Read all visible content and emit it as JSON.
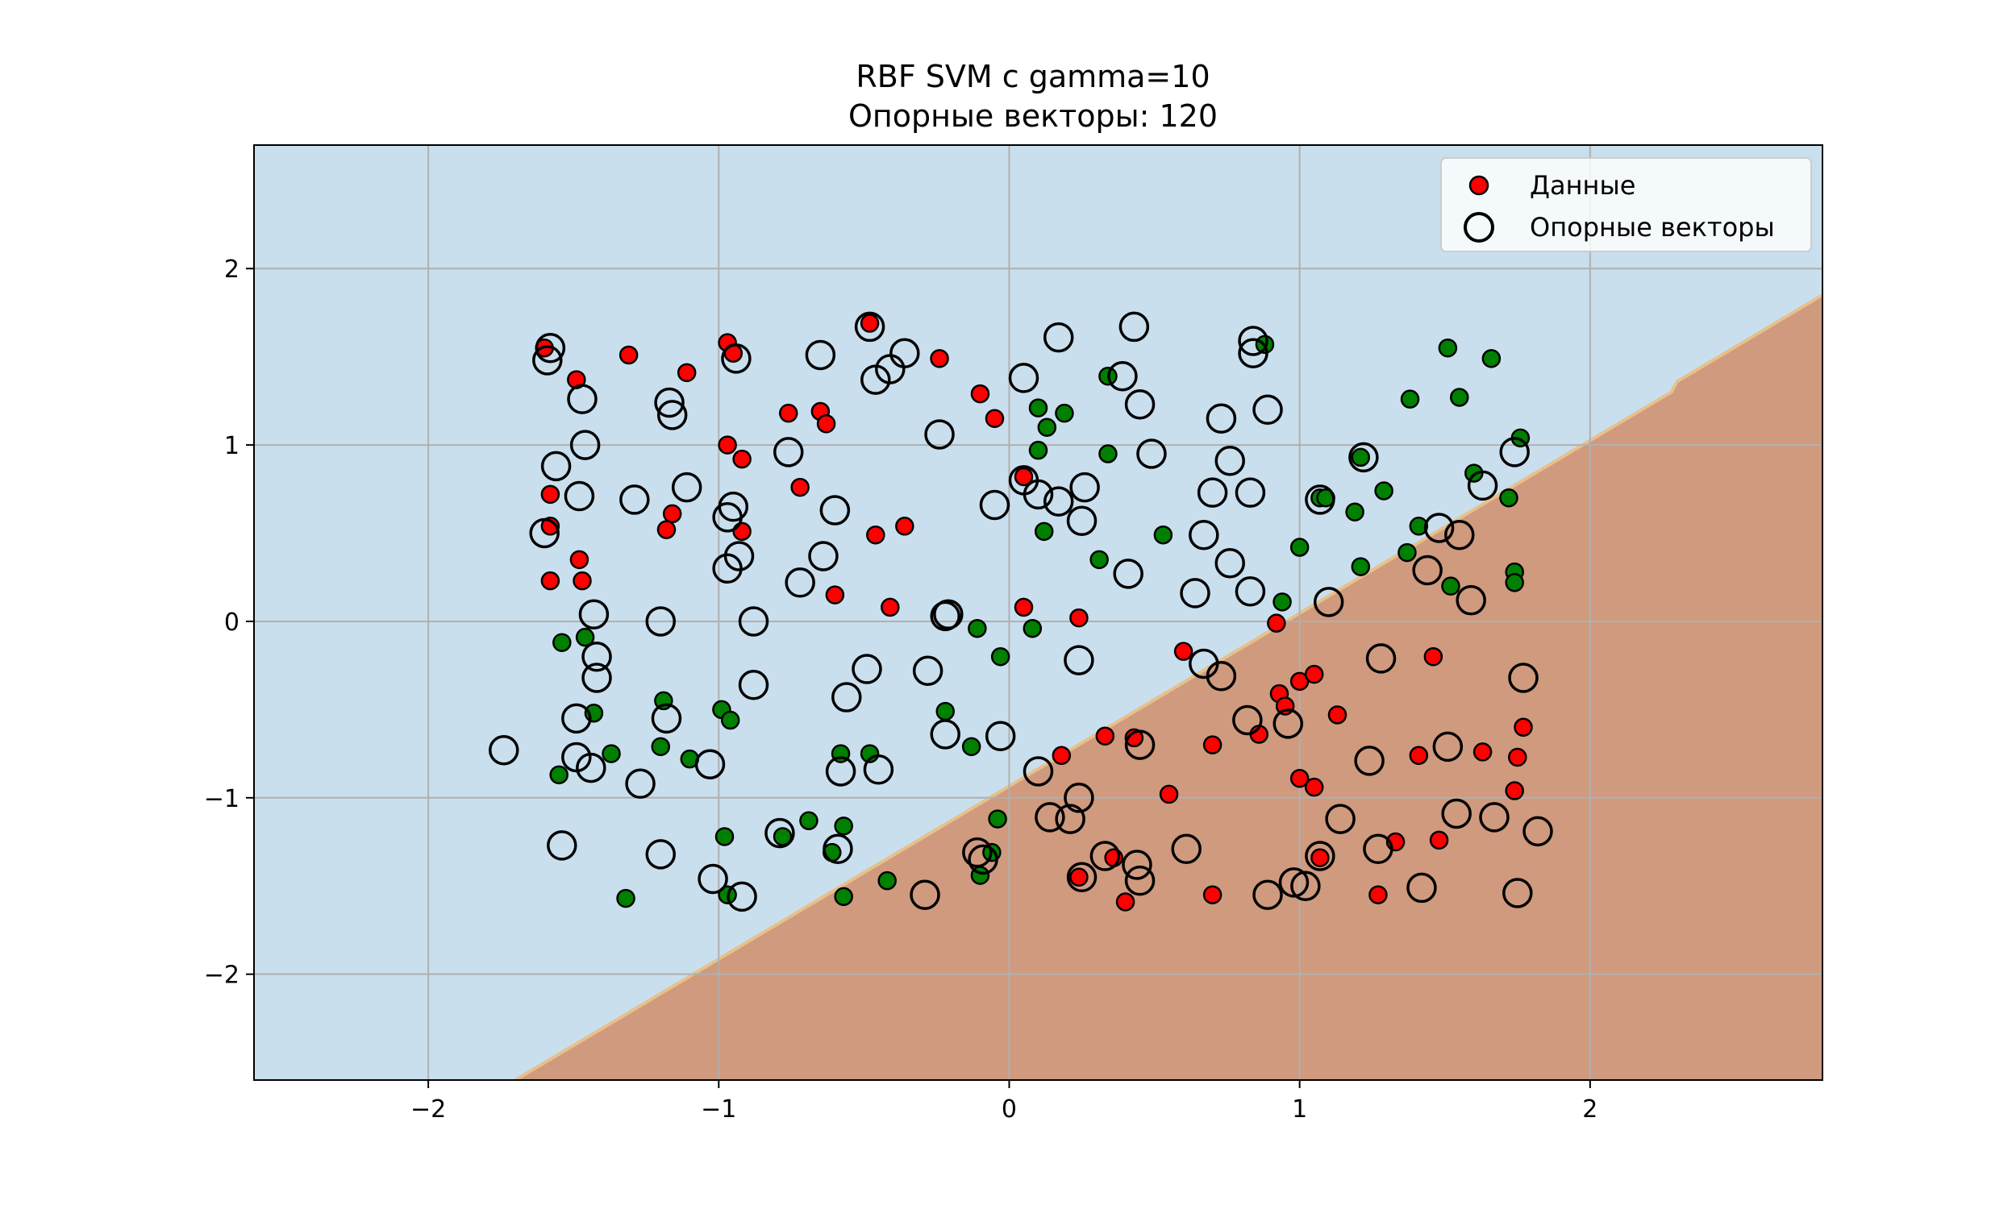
{
  "chart_data": {
    "type": "scatter",
    "title": "RBF SVM с gamma=10",
    "subtitle": "Опорные векторы: 120",
    "xlabel": "",
    "ylabel": "",
    "xlim": [
      -2.6,
      2.8
    ],
    "ylim": [
      -2.6,
      2.7
    ],
    "x_ticks": [
      -2,
      -1,
      0,
      1,
      2
    ],
    "y_ticks": [
      -2,
      -1,
      0,
      1,
      2
    ],
    "x_tick_labels": [
      "−2",
      "−1",
      "0",
      "1",
      "2"
    ],
    "y_tick_labels": [
      "−2",
      "−1",
      "0",
      "1",
      "2"
    ],
    "grid": true,
    "legend": {
      "placement": "top-right",
      "entries": [
        {
          "label": "Данные",
          "marker": "filled-circle",
          "color": "#ff0000"
        },
        {
          "label": "Опорные векторы",
          "marker": "hollow-circle",
          "color": "#000000"
        }
      ]
    },
    "decision_regions": {
      "boundary_line": [
        [
          -1.7,
          -2.6
        ],
        [
          2.28,
          1.3
        ],
        [
          2.3,
          1.36
        ],
        [
          2.8,
          1.85
        ]
      ],
      "upper_region_color": "#c9dfed",
      "lower_region_color": "#cf9a7e",
      "boundary_color": "#e8c08a"
    },
    "series": [
      {
        "name": "Данные",
        "colors": {
          "red": "#ff0000",
          "green": "#008000"
        },
        "points": [
          [
            -1.6,
            1.55,
            "red"
          ],
          [
            -1.31,
            1.51,
            "red"
          ],
          [
            -1.49,
            1.37,
            "red"
          ],
          [
            -1.11,
            1.41,
            "red"
          ],
          [
            -0.97,
            1.58,
            "red"
          ],
          [
            -0.95,
            1.52,
            "red"
          ],
          [
            -0.48,
            1.69,
            "red"
          ],
          [
            -0.24,
            1.49,
            "red"
          ],
          [
            -0.76,
            1.18,
            "red"
          ],
          [
            -0.65,
            1.19,
            "red"
          ],
          [
            -0.63,
            1.12,
            "red"
          ],
          [
            -0.1,
            1.29,
            "red"
          ],
          [
            -0.05,
            1.15,
            "red"
          ],
          [
            -0.97,
            1.0,
            "red"
          ],
          [
            -0.92,
            0.92,
            "red"
          ],
          [
            -0.72,
            0.76,
            "red"
          ],
          [
            -1.58,
            0.72,
            "red"
          ],
          [
            -1.58,
            0.54,
            "red"
          ],
          [
            -1.16,
            0.61,
            "red"
          ],
          [
            -1.18,
            0.52,
            "red"
          ],
          [
            -0.92,
            0.51,
            "red"
          ],
          [
            -0.46,
            0.49,
            "red"
          ],
          [
            -0.36,
            0.54,
            "red"
          ],
          [
            0.05,
            0.82,
            "red"
          ],
          [
            -1.48,
            0.35,
            "red"
          ],
          [
            -1.47,
            0.23,
            "red"
          ],
          [
            -1.58,
            0.23,
            "red"
          ],
          [
            -0.6,
            0.15,
            "red"
          ],
          [
            -0.41,
            0.08,
            "red"
          ],
          [
            0.05,
            0.08,
            "red"
          ],
          [
            0.24,
            0.02,
            "red"
          ],
          [
            0.6,
            -0.17,
            "red"
          ],
          [
            0.92,
            -0.01,
            "red"
          ],
          [
            1.46,
            -0.2,
            "red"
          ],
          [
            0.93,
            -0.41,
            "red"
          ],
          [
            0.95,
            -0.48,
            "red"
          ],
          [
            1.0,
            -0.34,
            "red"
          ],
          [
            1.05,
            -0.3,
            "red"
          ],
          [
            1.13,
            -0.53,
            "red"
          ],
          [
            1.77,
            -0.6,
            "red"
          ],
          [
            0.86,
            -0.64,
            "red"
          ],
          [
            0.7,
            -0.7,
            "red"
          ],
          [
            0.43,
            -0.66,
            "red"
          ],
          [
            0.33,
            -0.65,
            "red"
          ],
          [
            0.18,
            -0.76,
            "red"
          ],
          [
            1.41,
            -0.76,
            "red"
          ],
          [
            1.63,
            -0.74,
            "red"
          ],
          [
            1.75,
            -0.77,
            "red"
          ],
          [
            1.0,
            -0.89,
            "red"
          ],
          [
            1.05,
            -0.94,
            "red"
          ],
          [
            0.55,
            -0.98,
            "red"
          ],
          [
            1.74,
            -0.96,
            "red"
          ],
          [
            0.36,
            -1.34,
            "red"
          ],
          [
            0.24,
            -1.45,
            "red"
          ],
          [
            1.07,
            -1.34,
            "red"
          ],
          [
            1.33,
            -1.25,
            "red"
          ],
          [
            1.48,
            -1.24,
            "red"
          ],
          [
            0.4,
            -1.59,
            "red"
          ],
          [
            0.7,
            -1.55,
            "red"
          ],
          [
            1.27,
            -1.55,
            "red"
          ],
          [
            0.88,
            1.57,
            "green"
          ],
          [
            1.51,
            1.55,
            "green"
          ],
          [
            1.66,
            1.49,
            "green"
          ],
          [
            1.38,
            1.26,
            "green"
          ],
          [
            1.55,
            1.27,
            "green"
          ],
          [
            0.34,
            1.39,
            "green"
          ],
          [
            0.1,
            1.21,
            "green"
          ],
          [
            0.19,
            1.18,
            "green"
          ],
          [
            0.13,
            1.1,
            "green"
          ],
          [
            0.1,
            0.97,
            "green"
          ],
          [
            0.34,
            0.95,
            "green"
          ],
          [
            1.21,
            0.93,
            "green"
          ],
          [
            1.76,
            1.04,
            "green"
          ],
          [
            1.6,
            0.84,
            "green"
          ],
          [
            1.29,
            0.74,
            "green"
          ],
          [
            1.07,
            0.7,
            "green"
          ],
          [
            1.09,
            0.7,
            "green"
          ],
          [
            1.72,
            0.7,
            "green"
          ],
          [
            1.19,
            0.62,
            "green"
          ],
          [
            1.41,
            0.54,
            "green"
          ],
          [
            0.53,
            0.49,
            "green"
          ],
          [
            0.12,
            0.51,
            "green"
          ],
          [
            1.0,
            0.42,
            "green"
          ],
          [
            1.37,
            0.39,
            "green"
          ],
          [
            0.31,
            0.35,
            "green"
          ],
          [
            1.21,
            0.31,
            "green"
          ],
          [
            1.74,
            0.28,
            "green"
          ],
          [
            1.74,
            0.22,
            "green"
          ],
          [
            1.52,
            0.2,
            "green"
          ],
          [
            0.94,
            0.11,
            "green"
          ],
          [
            -0.11,
            -0.04,
            "green"
          ],
          [
            0.08,
            -0.04,
            "green"
          ],
          [
            -1.54,
            -0.12,
            "green"
          ],
          [
            -1.46,
            -0.09,
            "green"
          ],
          [
            -0.03,
            -0.2,
            "green"
          ],
          [
            -0.22,
            -0.51,
            "green"
          ],
          [
            -1.19,
            -0.45,
            "green"
          ],
          [
            -0.99,
            -0.5,
            "green"
          ],
          [
            -0.96,
            -0.56,
            "green"
          ],
          [
            -1.43,
            -0.52,
            "green"
          ],
          [
            -0.13,
            -0.71,
            "green"
          ],
          [
            -1.2,
            -0.71,
            "green"
          ],
          [
            -1.37,
            -0.75,
            "green"
          ],
          [
            -0.58,
            -0.75,
            "green"
          ],
          [
            -0.48,
            -0.75,
            "green"
          ],
          [
            -1.1,
            -0.78,
            "green"
          ],
          [
            -1.55,
            -0.87,
            "green"
          ],
          [
            -0.04,
            -1.12,
            "green"
          ],
          [
            -0.69,
            -1.13,
            "green"
          ],
          [
            -0.57,
            -1.16,
            "green"
          ],
          [
            -0.78,
            -1.22,
            "green"
          ],
          [
            -0.98,
            -1.22,
            "green"
          ],
          [
            -0.61,
            -1.31,
            "green"
          ],
          [
            -0.06,
            -1.31,
            "green"
          ],
          [
            -0.1,
            -1.44,
            "green"
          ],
          [
            -0.42,
            -1.47,
            "green"
          ],
          [
            -0.97,
            -1.55,
            "green"
          ],
          [
            -0.57,
            -1.56,
            "green"
          ],
          [
            -1.32,
            -1.57,
            "green"
          ]
        ]
      },
      {
        "name": "Опорные векторы",
        "points": [
          [
            -1.58,
            1.55
          ],
          [
            -1.59,
            1.48
          ],
          [
            -1.47,
            1.26
          ],
          [
            -1.17,
            1.24
          ],
          [
            -1.16,
            1.17
          ],
          [
            -0.94,
            1.49
          ],
          [
            -0.65,
            1.51
          ],
          [
            -0.48,
            1.67
          ],
          [
            -0.36,
            1.52
          ],
          [
            -0.41,
            1.43
          ],
          [
            -0.46,
            1.37
          ],
          [
            -0.24,
            1.06
          ],
          [
            0.17,
            1.61
          ],
          [
            0.05,
            1.38
          ],
          [
            0.39,
            1.39
          ],
          [
            0.43,
            1.67
          ],
          [
            0.45,
            1.23
          ],
          [
            0.84,
            1.59
          ],
          [
            0.84,
            1.52
          ],
          [
            0.89,
            1.2
          ],
          [
            0.73,
            1.15
          ],
          [
            -1.56,
            0.88
          ],
          [
            -1.46,
            1.0
          ],
          [
            -1.48,
            0.71
          ],
          [
            -1.29,
            0.69
          ],
          [
            -1.11,
            0.76
          ],
          [
            -0.76,
            0.96
          ],
          [
            -0.95,
            0.65
          ],
          [
            -0.97,
            0.59
          ],
          [
            -0.6,
            0.63
          ],
          [
            0.05,
            0.8
          ],
          [
            0.1,
            0.72
          ],
          [
            0.17,
            0.68
          ],
          [
            0.26,
            0.76
          ],
          [
            -0.05,
            0.66
          ],
          [
            0.25,
            0.57
          ],
          [
            0.49,
            0.95
          ],
          [
            0.76,
            0.91
          ],
          [
            0.7,
            0.73
          ],
          [
            0.83,
            0.73
          ],
          [
            1.07,
            0.69
          ],
          [
            1.22,
            0.93
          ],
          [
            1.74,
            0.96
          ],
          [
            1.63,
            0.77
          ],
          [
            1.48,
            0.53
          ],
          [
            1.55,
            0.49
          ],
          [
            1.44,
            0.29
          ],
          [
            1.59,
            0.12
          ],
          [
            0.67,
            0.49
          ],
          [
            0.76,
            0.33
          ],
          [
            0.83,
            0.17
          ],
          [
            0.64,
            0.16
          ],
          [
            0.41,
            0.27
          ],
          [
            -1.6,
            0.5
          ],
          [
            -0.64,
            0.37
          ],
          [
            -0.93,
            0.37
          ],
          [
            -0.97,
            0.3
          ],
          [
            -0.72,
            0.22
          ],
          [
            -1.43,
            0.04
          ],
          [
            -1.2,
            0.0
          ],
          [
            -0.88,
            0.0
          ],
          [
            -0.21,
            0.04
          ],
          [
            -0.22,
            0.03
          ],
          [
            1.1,
            0.11
          ],
          [
            -1.42,
            -0.2
          ],
          [
            -1.42,
            -0.32
          ],
          [
            -0.88,
            -0.36
          ],
          [
            -0.49,
            -0.27
          ],
          [
            -0.28,
            -0.28
          ],
          [
            0.24,
            -0.22
          ],
          [
            0.67,
            -0.24
          ],
          [
            0.73,
            -0.31
          ],
          [
            1.28,
            -0.21
          ],
          [
            1.77,
            -0.32
          ],
          [
            0.82,
            -0.56
          ],
          [
            0.96,
            -0.58
          ],
          [
            -1.49,
            -0.55
          ],
          [
            -1.18,
            -0.55
          ],
          [
            -0.56,
            -0.43
          ],
          [
            -0.22,
            -0.64
          ],
          [
            -0.03,
            -0.65
          ],
          [
            -1.49,
            -0.77
          ],
          [
            -1.44,
            -0.83
          ],
          [
            -1.27,
            -0.92
          ],
          [
            -1.03,
            -0.81
          ],
          [
            -0.58,
            -0.85
          ],
          [
            -0.45,
            -0.84
          ],
          [
            0.1,
            -0.85
          ],
          [
            0.45,
            -0.7
          ],
          [
            1.24,
            -0.79
          ],
          [
            1.51,
            -0.71
          ],
          [
            -1.74,
            -0.73
          ],
          [
            -1.54,
            -1.27
          ],
          [
            -1.2,
            -1.32
          ],
          [
            -0.79,
            -1.2
          ],
          [
            -0.59,
            -1.29
          ],
          [
            -1.02,
            -1.46
          ],
          [
            -0.92,
            -1.56
          ],
          [
            -0.29,
            -1.55
          ],
          [
            -0.11,
            -1.31
          ],
          [
            -0.09,
            -1.35
          ],
          [
            0.14,
            -1.11
          ],
          [
            0.21,
            -1.12
          ],
          [
            0.24,
            -1.0
          ],
          [
            0.25,
            -1.45
          ],
          [
            0.33,
            -1.33
          ],
          [
            0.44,
            -1.38
          ],
          [
            0.45,
            -1.47
          ],
          [
            0.61,
            -1.29
          ],
          [
            0.89,
            -1.55
          ],
          [
            0.98,
            -1.48
          ],
          [
            1.02,
            -1.5
          ],
          [
            1.07,
            -1.33
          ],
          [
            1.14,
            -1.12
          ],
          [
            1.27,
            -1.29
          ],
          [
            1.42,
            -1.51
          ],
          [
            1.54,
            -1.09
          ],
          [
            1.67,
            -1.11
          ],
          [
            1.82,
            -1.19
          ],
          [
            1.75,
            -1.54
          ]
        ]
      }
    ]
  }
}
